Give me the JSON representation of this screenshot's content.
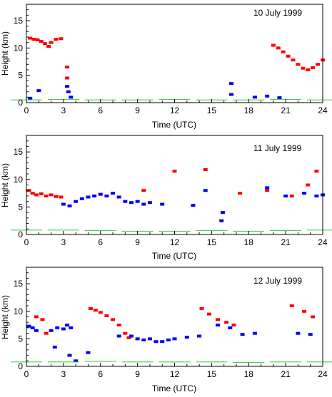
{
  "colors": {
    "axis": "#000000",
    "ice": "#ff0000",
    "water": "#0000ff",
    "ground": "#33cc33"
  },
  "chart_data": [
    {
      "type": "scatter",
      "title": "10 July 1999",
      "xlabel": "Time (UTC)",
      "ylabel": "Height (km)",
      "xlim": [
        0,
        24
      ],
      "ylim": [
        0,
        18
      ],
      "xticks": [
        "0",
        "3",
        "6",
        "9",
        "12",
        "15",
        "18",
        "21",
        "24"
      ],
      "yticks": [
        "0",
        "5",
        "10",
        "15"
      ],
      "grid": false,
      "series": [
        {
          "color": "red",
          "points": [
            [
              0.3,
              11.8
            ],
            [
              0.6,
              11.6
            ],
            [
              0.9,
              11.5
            ],
            [
              1.2,
              11.2
            ],
            [
              1.5,
              10.8
            ],
            [
              1.8,
              10.3
            ],
            [
              2.0,
              11.0
            ],
            [
              2.4,
              11.6
            ],
            [
              2.8,
              11.7
            ],
            [
              3.3,
              6.5
            ],
            [
              3.3,
              4.5
            ],
            [
              20.0,
              10.5
            ],
            [
              20.4,
              10.0
            ],
            [
              20.8,
              9.3
            ],
            [
              21.2,
              8.5
            ],
            [
              21.6,
              7.8
            ],
            [
              22.0,
              7.0
            ],
            [
              22.4,
              6.3
            ],
            [
              22.8,
              6.0
            ],
            [
              23.2,
              6.4
            ],
            [
              23.6,
              7.0
            ],
            [
              24.0,
              7.8
            ]
          ]
        },
        {
          "color": "blue",
          "points": [
            [
              0.3,
              0.8
            ],
            [
              1.0,
              2.2
            ],
            [
              3.3,
              3.0
            ],
            [
              3.4,
              2.0
            ],
            [
              3.6,
              1.0
            ],
            [
              16.6,
              3.5
            ],
            [
              16.6,
              1.5
            ],
            [
              18.5,
              1.0
            ],
            [
              19.5,
              1.2
            ],
            [
              20.5,
              0.9
            ]
          ]
        },
        {
          "color": "green",
          "points": [
            [
              0,
              0.5
            ],
            [
              3,
              0.6
            ],
            [
              6,
              0.5
            ],
            [
              9,
              0.5
            ],
            [
              12,
              0.6
            ],
            [
              15,
              0.5
            ],
            [
              18,
              0.5
            ],
            [
              21,
              0.6
            ],
            [
              24,
              0.5
            ]
          ]
        }
      ]
    },
    {
      "type": "scatter",
      "title": "11 July 1999",
      "xlabel": "Time (UTC)",
      "ylabel": "Height (km)",
      "xlim": [
        0,
        24
      ],
      "ylim": [
        0,
        18
      ],
      "xticks": [
        "0",
        "3",
        "6",
        "9",
        "12",
        "15",
        "18",
        "21",
        "24"
      ],
      "yticks": [
        "0",
        "5",
        "10",
        "15"
      ],
      "grid": false,
      "series": [
        {
          "color": "red",
          "points": [
            [
              0.2,
              8.0
            ],
            [
              0.5,
              7.5
            ],
            [
              0.8,
              7.2
            ],
            [
              1.2,
              7.4
            ],
            [
              1.6,
              7.0
            ],
            [
              2.0,
              7.2
            ],
            [
              2.4,
              6.9
            ],
            [
              2.8,
              6.8
            ],
            [
              9.5,
              8.0
            ],
            [
              12.0,
              11.5
            ],
            [
              14.5,
              11.8
            ],
            [
              17.3,
              7.5
            ],
            [
              19.5,
              8.0
            ],
            [
              21.5,
              7.0
            ],
            [
              22.8,
              9.0
            ],
            [
              23.5,
              11.5
            ]
          ]
        },
        {
          "color": "blue",
          "points": [
            [
              3.0,
              5.5
            ],
            [
              3.5,
              5.2
            ],
            [
              4.0,
              6.0
            ],
            [
              4.5,
              6.5
            ],
            [
              5.0,
              6.8
            ],
            [
              5.5,
              7.0
            ],
            [
              6.0,
              7.3
            ],
            [
              6.5,
              7.0
            ],
            [
              7.0,
              7.5
            ],
            [
              7.5,
              6.8
            ],
            [
              8.0,
              6.0
            ],
            [
              8.5,
              5.8
            ],
            [
              9.0,
              6.0
            ],
            [
              9.5,
              5.5
            ],
            [
              10.0,
              5.8
            ],
            [
              11.0,
              5.5
            ],
            [
              13.5,
              5.3
            ],
            [
              14.5,
              8.0
            ],
            [
              15.8,
              2.5
            ],
            [
              15.9,
              4.0
            ],
            [
              19.5,
              8.5
            ],
            [
              21.0,
              7.0
            ],
            [
              22.5,
              7.5
            ],
            [
              23.5,
              7.0
            ],
            [
              24.0,
              7.2
            ]
          ]
        },
        {
          "color": "green",
          "points": [
            [
              0,
              0.8
            ],
            [
              3,
              0.8
            ],
            [
              6,
              0.7
            ],
            [
              9,
              0.6
            ],
            [
              12,
              0.6
            ],
            [
              15,
              0.7
            ],
            [
              18,
              0.6
            ],
            [
              21,
              0.7
            ],
            [
              24,
              0.8
            ]
          ]
        }
      ]
    },
    {
      "type": "scatter",
      "title": "12 July 1999",
      "xlabel": "Time (UTC)",
      "ylabel": "Height (km)",
      "xlim": [
        0,
        24
      ],
      "ylim": [
        0,
        18
      ],
      "xticks": [
        "0",
        "3",
        "6",
        "9",
        "12",
        "15",
        "18",
        "21",
        "24"
      ],
      "yticks": [
        "0",
        "5",
        "10",
        "15"
      ],
      "grid": false,
      "series": [
        {
          "color": "red",
          "points": [
            [
              0.8,
              9.0
            ],
            [
              1.3,
              8.5
            ],
            [
              1.6,
              6.0
            ],
            [
              5.2,
              10.5
            ],
            [
              5.6,
              10.2
            ],
            [
              6.0,
              9.8
            ],
            [
              6.5,
              9.2
            ],
            [
              7.0,
              8.5
            ],
            [
              7.5,
              7.5
            ],
            [
              8.0,
              6.0
            ],
            [
              8.3,
              5.2
            ],
            [
              14.2,
              10.5
            ],
            [
              14.8,
              9.5
            ],
            [
              15.5,
              8.5
            ],
            [
              16.2,
              8.0
            ],
            [
              16.8,
              7.5
            ],
            [
              21.5,
              11.0
            ],
            [
              22.5,
              10.0
            ],
            [
              23.2,
              9.0
            ]
          ]
        },
        {
          "color": "blue",
          "points": [
            [
              0.2,
              7.3
            ],
            [
              0.5,
              7.0
            ],
            [
              0.8,
              6.5
            ],
            [
              2.0,
              6.5
            ],
            [
              2.5,
              7.0
            ],
            [
              3.0,
              6.8
            ],
            [
              3.3,
              7.5
            ],
            [
              3.6,
              7.0
            ],
            [
              2.3,
              3.5
            ],
            [
              3.5,
              2.0
            ],
            [
              4.0,
              1.0
            ],
            [
              5.0,
              2.5
            ],
            [
              7.5,
              5.5
            ],
            [
              8.5,
              5.5
            ],
            [
              9.0,
              5.0
            ],
            [
              9.5,
              4.8
            ],
            [
              10.0,
              5.0
            ],
            [
              10.5,
              4.5
            ],
            [
              11.0,
              4.5
            ],
            [
              11.5,
              4.8
            ],
            [
              12.0,
              5.0
            ],
            [
              13.0,
              5.3
            ],
            [
              14.0,
              5.5
            ],
            [
              15.5,
              7.5
            ],
            [
              16.5,
              7.0
            ],
            [
              17.5,
              5.8
            ],
            [
              18.5,
              6.0
            ],
            [
              22.0,
              6.0
            ],
            [
              23.0,
              5.8
            ]
          ]
        },
        {
          "color": "green",
          "points": [
            [
              0,
              0.8
            ],
            [
              3,
              0.8
            ],
            [
              6,
              0.9
            ],
            [
              9,
              0.8
            ],
            [
              12,
              0.8
            ],
            [
              15,
              0.8
            ],
            [
              18,
              0.7
            ],
            [
              21,
              0.8
            ],
            [
              24,
              0.8
            ]
          ]
        }
      ]
    }
  ]
}
